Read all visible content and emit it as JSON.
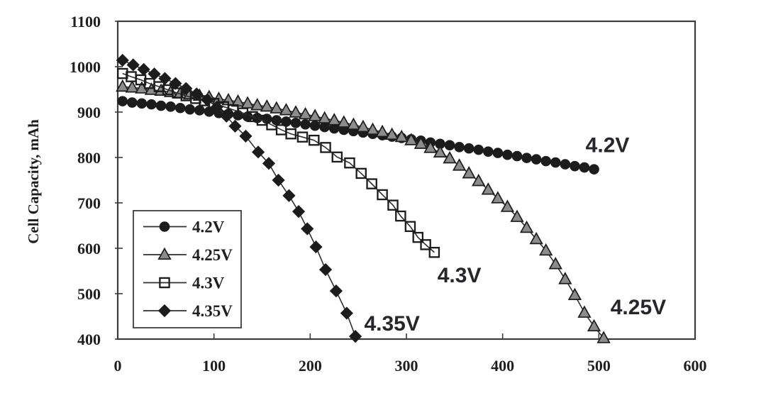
{
  "chart_data": {
    "type": "line",
    "title": "",
    "xlabel": "",
    "ylabel": "Cell Capacity, mAh",
    "xlim": [
      0,
      600
    ],
    "ylim": [
      400,
      1100
    ],
    "x_ticks": [
      0,
      100,
      200,
      300,
      400,
      500,
      600
    ],
    "y_ticks": [
      400,
      500,
      600,
      700,
      800,
      900,
      1000,
      1100
    ],
    "grid": false,
    "legend_position": "lower-left",
    "colors": {
      "ink": "#1c1c1c",
      "line": "#2f2f2f",
      "frame": "#3c3c3c",
      "gray_fill": "#8c8c8c",
      "annotation": "#26262c",
      "background": "#ffffff"
    },
    "series": [
      {
        "name": "4.2V",
        "marker": "circle",
        "points": [
          [
            5,
            924
          ],
          [
            15,
            921
          ],
          [
            25,
            919
          ],
          [
            35,
            917
          ],
          [
            45,
            914
          ],
          [
            55,
            912
          ],
          [
            65,
            909
          ],
          [
            75,
            906
          ],
          [
            85,
            904
          ],
          [
            95,
            901
          ],
          [
            105,
            898
          ],
          [
            115,
            896
          ],
          [
            125,
            893
          ],
          [
            135,
            890
          ],
          [
            145,
            887
          ],
          [
            155,
            885
          ],
          [
            165,
            882
          ],
          [
            175,
            879
          ],
          [
            185,
            876
          ],
          [
            195,
            873
          ],
          [
            205,
            870
          ],
          [
            215,
            867
          ],
          [
            225,
            864
          ],
          [
            235,
            861
          ],
          [
            245,
            858
          ],
          [
            255,
            855
          ],
          [
            265,
            852
          ],
          [
            275,
            849
          ],
          [
            285,
            846
          ],
          [
            295,
            843
          ],
          [
            305,
            840
          ],
          [
            315,
            837
          ],
          [
            325,
            833
          ],
          [
            335,
            830
          ],
          [
            345,
            827
          ],
          [
            355,
            823
          ],
          [
            365,
            820
          ],
          [
            375,
            817
          ],
          [
            385,
            813
          ],
          [
            395,
            810
          ],
          [
            405,
            806
          ],
          [
            415,
            803
          ],
          [
            425,
            799
          ],
          [
            435,
            796
          ],
          [
            445,
            792
          ],
          [
            455,
            789
          ],
          [
            465,
            785
          ],
          [
            475,
            781
          ],
          [
            485,
            778
          ],
          [
            495,
            774
          ]
        ]
      },
      {
        "name": "4.25V",
        "marker": "triangle",
        "points": [
          [
            5,
            956
          ],
          [
            15,
            954
          ],
          [
            25,
            952
          ],
          [
            35,
            949
          ],
          [
            45,
            947
          ],
          [
            55,
            944
          ],
          [
            65,
            941
          ],
          [
            75,
            939
          ],
          [
            85,
            936
          ],
          [
            95,
            933
          ],
          [
            105,
            929
          ],
          [
            115,
            926
          ],
          [
            125,
            923
          ],
          [
            135,
            919
          ],
          [
            145,
            915
          ],
          [
            155,
            912
          ],
          [
            165,
            908
          ],
          [
            175,
            904
          ],
          [
            185,
            899
          ],
          [
            195,
            895
          ],
          [
            205,
            891
          ],
          [
            215,
            886
          ],
          [
            225,
            882
          ],
          [
            235,
            877
          ],
          [
            245,
            872
          ],
          [
            255,
            867
          ],
          [
            265,
            861
          ],
          [
            275,
            856
          ],
          [
            285,
            850
          ],
          [
            295,
            845
          ],
          [
            305,
            838
          ],
          [
            315,
            830
          ],
          [
            325,
            821
          ],
          [
            335,
            811
          ],
          [
            345,
            798
          ],
          [
            355,
            782
          ],
          [
            365,
            765
          ],
          [
            375,
            748
          ],
          [
            385,
            729
          ],
          [
            395,
            710
          ],
          [
            405,
            691
          ],
          [
            415,
            669
          ],
          [
            425,
            645
          ],
          [
            435,
            620
          ],
          [
            445,
            595
          ],
          [
            455,
            565
          ],
          [
            465,
            532
          ],
          [
            475,
            497
          ],
          [
            485,
            458
          ],
          [
            495,
            428
          ],
          [
            505,
            402
          ]
        ]
      },
      {
        "name": "4.3V",
        "marker": "square",
        "points": [
          [
            5,
            985
          ],
          [
            14,
            978
          ],
          [
            24,
            971
          ],
          [
            33,
            963
          ],
          [
            43,
            956
          ],
          [
            52,
            949
          ],
          [
            62,
            942
          ],
          [
            71,
            936
          ],
          [
            81,
            930
          ],
          [
            90,
            925
          ],
          [
            100,
            919
          ],
          [
            110,
            912
          ],
          [
            120,
            905
          ],
          [
            130,
            898
          ],
          [
            140,
            890
          ],
          [
            150,
            882
          ],
          [
            160,
            872
          ],
          [
            170,
            861
          ],
          [
            180,
            852
          ],
          [
            192,
            845
          ],
          [
            204,
            838
          ],
          [
            216,
            822
          ],
          [
            228,
            801
          ],
          [
            241,
            788
          ],
          [
            253,
            765
          ],
          [
            264,
            742
          ],
          [
            275,
            718
          ],
          [
            286,
            695
          ],
          [
            294,
            671
          ],
          [
            304,
            648
          ],
          [
            312,
            624
          ],
          [
            320,
            608
          ],
          [
            329,
            591
          ]
        ]
      },
      {
        "name": "4.35V",
        "marker": "diamond",
        "points": [
          [
            5,
            1014
          ],
          [
            16,
            1004
          ],
          [
            27,
            994
          ],
          [
            38,
            984
          ],
          [
            49,
            974
          ],
          [
            60,
            963
          ],
          [
            71,
            952
          ],
          [
            82,
            940
          ],
          [
            93,
            927
          ],
          [
            103,
            911
          ],
          [
            113,
            891
          ],
          [
            122,
            869
          ],
          [
            133,
            847
          ],
          [
            146,
            812
          ],
          [
            157,
            787
          ],
          [
            167,
            750
          ],
          [
            178,
            716
          ],
          [
            188,
            681
          ],
          [
            197,
            643
          ],
          [
            206,
            603
          ],
          [
            216,
            553
          ],
          [
            227,
            506
          ],
          [
            238,
            457
          ],
          [
            247,
            406
          ]
        ]
      }
    ],
    "legend": {
      "items": [
        "4.2V",
        "4.25V",
        "4.3V",
        "4.35V"
      ]
    },
    "annotations": [
      {
        "text": "4.2V",
        "x": 509,
        "y": 827
      },
      {
        "text": "4.25V",
        "x": 541,
        "y": 470
      },
      {
        "text": "4.3V",
        "x": 355,
        "y": 541
      },
      {
        "text": "4.35V",
        "x": 285,
        "y": 434
      }
    ]
  }
}
